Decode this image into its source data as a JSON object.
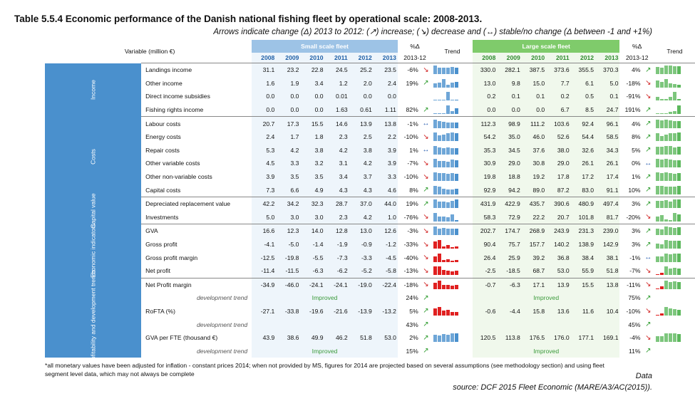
{
  "title": "Table 5.5.4 Economic performance of the Danish national fishing fleet by operational scale: 2008-2013.",
  "subtitle": "Arrows indicate change (Δ) 2013 to 2012: (↗) increase; (↘) decrease and (↔) stable/no change (Δ between -1 and +1%)",
  "header": {
    "variable": "Variable (million €)",
    "small": "Small scale fleet",
    "large": "Large scale fleet",
    "pct": "%Δ",
    "pct_years": "2013-12",
    "trend": "Trend",
    "years": [
      "2008",
      "2009",
      "2010",
      "2011",
      "2012",
      "2013"
    ]
  },
  "sections": [
    {
      "name": "Income",
      "rows": [
        {
          "label": "Landings income",
          "s": [
            "31.1",
            "23.2",
            "22.8",
            "24.5",
            "25.2",
            "23.5"
          ],
          "sp": "-6%",
          "sa": "↘",
          "l": [
            "330.0",
            "282.1",
            "387.5",
            "373.6",
            "355.5",
            "370.3"
          ],
          "lp": "4%",
          "la": "↗"
        },
        {
          "label": "Other income",
          "s": [
            "1.6",
            "1.9",
            "3.4",
            "1.2",
            "2.0",
            "2.4"
          ],
          "sp": "19%",
          "sa": "↗",
          "l": [
            "13.0",
            "9.8",
            "15.0",
            "7.7",
            "6.1",
            "5.0"
          ],
          "lp": "-18%",
          "la": "↘"
        },
        {
          "label": "Direct income subsidies",
          "s": [
            "0.0",
            "0.0",
            "0.0",
            "0.01",
            "0.0",
            "0.0"
          ],
          "sp": "",
          "sa": "",
          "l": [
            "0.2",
            "0.1",
            "0.1",
            "0.2",
            "0.5",
            "0.1"
          ],
          "lp": "-91%",
          "la": "↘"
        },
        {
          "label": "Fishing rights income",
          "s": [
            "0.0",
            "0.0",
            "0.0",
            "1.63",
            "0.61",
            "1.11"
          ],
          "sp": "82%",
          "sa": "↗",
          "l": [
            "0.0",
            "0.0",
            "0.0",
            "6.7",
            "8.5",
            "24.7"
          ],
          "lp": "191%",
          "la": "↗"
        }
      ]
    },
    {
      "name": "Costs",
      "rows": [
        {
          "label": "Labour costs",
          "s": [
            "20.7",
            "17.3",
            "15.5",
            "14.6",
            "13.9",
            "13.8"
          ],
          "sp": "-1%",
          "sa": "↔",
          "l": [
            "112.3",
            "98.9",
            "111.2",
            "103.6",
            "92.4",
            "96.1"
          ],
          "lp": "4%",
          "la": "↗"
        },
        {
          "label": "Energy costs",
          "s": [
            "2.4",
            "1.7",
            "1.8",
            "2.3",
            "2.5",
            "2.2"
          ],
          "sp": "-10%",
          "sa": "↘",
          "l": [
            "54.2",
            "35.0",
            "46.0",
            "52.6",
            "54.4",
            "58.5"
          ],
          "lp": "8%",
          "la": "↗"
        },
        {
          "label": "Repair costs",
          "s": [
            "5.3",
            "4.2",
            "3.8",
            "4.2",
            "3.8",
            "3.9"
          ],
          "sp": "1%",
          "sa": "↔",
          "l": [
            "35.3",
            "34.5",
            "37.6",
            "38.0",
            "32.6",
            "34.3"
          ],
          "lp": "5%",
          "la": "↗"
        },
        {
          "label": "Other variable costs",
          "s": [
            "4.5",
            "3.3",
            "3.2",
            "3.1",
            "4.2",
            "3.9"
          ],
          "sp": "-7%",
          "sa": "↘",
          "l": [
            "30.9",
            "29.0",
            "30.8",
            "29.0",
            "26.1",
            "26.1"
          ],
          "lp": "0%",
          "la": "↔"
        },
        {
          "label": "Other non-variable costs",
          "s": [
            "3.9",
            "3.5",
            "3.5",
            "3.4",
            "3.7",
            "3.3"
          ],
          "sp": "-10%",
          "sa": "↘",
          "l": [
            "19.8",
            "18.8",
            "19.2",
            "17.8",
            "17.2",
            "17.4"
          ],
          "lp": "1%",
          "la": "↗"
        },
        {
          "label": "Capital costs",
          "s": [
            "7.3",
            "6.6",
            "4.9",
            "4.3",
            "4.3",
            "4.6"
          ],
          "sp": "8%",
          "sa": "↗",
          "l": [
            "92.9",
            "94.2",
            "89.0",
            "87.2",
            "83.0",
            "91.1"
          ],
          "lp": "10%",
          "la": "↗"
        }
      ]
    },
    {
      "name": "Capital value",
      "rows": [
        {
          "label": "Depreciated replacement value",
          "s": [
            "42.2",
            "34.2",
            "32.3",
            "28.7",
            "37.0",
            "44.0"
          ],
          "sp": "19%",
          "sa": "↗",
          "l": [
            "431.9",
            "422.9",
            "435.7",
            "390.6",
            "480.9",
            "497.4"
          ],
          "lp": "3%",
          "la": "↗"
        },
        {
          "label": "Investments",
          "s": [
            "5.0",
            "3.0",
            "3.0",
            "2.3",
            "4.2",
            "1.0"
          ],
          "sp": "-76%",
          "sa": "↘",
          "l": [
            "58.3",
            "72.9",
            "22.2",
            "20.7",
            "101.8",
            "81.7"
          ],
          "lp": "-20%",
          "la": "↘"
        }
      ]
    },
    {
      "name": "Economic indicators",
      "rows": [
        {
          "label": "GVA",
          "s": [
            "16.6",
            "12.3",
            "14.0",
            "12.8",
            "13.0",
            "12.6"
          ],
          "sp": "-3%",
          "sa": "↘",
          "l": [
            "202.7",
            "174.7",
            "268.9",
            "243.9",
            "231.3",
            "239.0"
          ],
          "lp": "3%",
          "la": "↗"
        },
        {
          "label": "Gross profit",
          "s": [
            "-4.1",
            "-5.0",
            "-1.4",
            "-1.9",
            "-0.9",
            "-1.2"
          ],
          "sp": "-33%",
          "sa": "↘",
          "l": [
            "90.4",
            "75.7",
            "157.7",
            "140.2",
            "138.9",
            "142.9"
          ],
          "lp": "3%",
          "la": "↗"
        },
        {
          "label": "Gross profit margin",
          "s": [
            "-12.5",
            "-19.8",
            "-5.5",
            "-7.3",
            "-3.3",
            "-4.5"
          ],
          "sp": "-40%",
          "sa": "↘",
          "l": [
            "26.4",
            "25.9",
            "39.2",
            "36.8",
            "38.4",
            "38.1"
          ],
          "lp": "-1%",
          "la": "↔"
        },
        {
          "label": "Net profit",
          "s": [
            "-11.4",
            "-11.5",
            "-6.3",
            "-6.2",
            "-5.2",
            "-5.8"
          ],
          "sp": "-13%",
          "sa": "↘",
          "l": [
            "-2.5",
            "-18.5",
            "68.7",
            "53.0",
            "55.9",
            "51.8"
          ],
          "lp": "-7%",
          "la": "↘"
        }
      ]
    },
    {
      "name": "Profitability and development trends",
      "rows": [
        {
          "label": "Net Profit margin",
          "s": [
            "-34.9",
            "-46.0",
            "-24.1",
            "-24.1",
            "-19.0",
            "-22.4"
          ],
          "sp": "-18%",
          "sa": "↘",
          "l": [
            "-0.7",
            "-6.3",
            "17.1",
            "13.9",
            "15.5",
            "13.8"
          ],
          "lp": "-11%",
          "la": "↘"
        },
        {
          "label": "development trend",
          "dev": true,
          "sImp": "Improved",
          "sp": "24%",
          "sa": "↗",
          "lImp": "Improved",
          "lp": "75%",
          "la": "↗"
        },
        {
          "label": "RoFTA (%)",
          "s": [
            "-27.1",
            "-33.8",
            "-19.6",
            "-21.6",
            "-13.9",
            "-13.2"
          ],
          "sp": "5%",
          "sa": "↗",
          "l": [
            "-0.6",
            "-4.4",
            "15.8",
            "13.6",
            "11.6",
            "10.4"
          ],
          "lp": "-10%",
          "la": "↘"
        },
        {
          "label": "development trend",
          "dev": true,
          "sImp": "",
          "sp": "43%",
          "sa": "↗",
          "lImp": "",
          "lp": "45%",
          "la": "↗"
        },
        {
          "label": "GVA per FTE (thousand €)",
          "s": [
            "43.9",
            "38.6",
            "49.9",
            "46.2",
            "51.8",
            "53.0"
          ],
          "sp": "2%",
          "sa": "↗",
          "l": [
            "120.5",
            "113.8",
            "176.5",
            "176.0",
            "177.1",
            "169.1"
          ],
          "lp": "-4%",
          "la": "↘"
        },
        {
          "label": "development trend",
          "dev": true,
          "sImp": "Improved",
          "sp": "15%",
          "sa": "↗",
          "lImp": "Improved",
          "lp": "11%",
          "la": "↗"
        }
      ]
    }
  ],
  "note": "*all monetary values have been adjusted for inflation - constant prices 2014; when not provided by MS, figures for 2014 are projected based on several assumptions (see methodology section) and using fleet segment level data, which may not always be complete",
  "source1": "Data",
  "source2": "source: DCF 2015 Fleet Economic (MARE/A3/AC(2015)).",
  "colors": {
    "blue": "#4a90cd",
    "green": "#5cb85c",
    "red": "#e02020"
  }
}
